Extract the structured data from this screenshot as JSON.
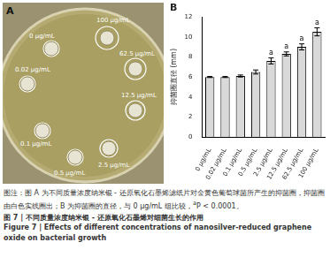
{
  "panel_labels": [
    "A",
    "B"
  ],
  "panel_a": {
    "plate_labels": [
      "0 μg/mL",
      "100 μg/mL",
      "62.5 μg/mL",
      "0.02 μg/mL",
      "12.5 μg/mL",
      "0.1 μg/mL",
      "2.5 μg/mL",
      "0.5 μg/mL"
    ]
  },
  "chart_data": {
    "type": "bar",
    "categories": [
      "0 μg/mL",
      "0.02 μg/mL",
      "0.1 μg/mL",
      "0.5 μg/mL",
      "2.5 μg/mL",
      "12.5 μg/mL",
      "62.5 μg/mL",
      "100 μg/mL"
    ],
    "values": [
      6.0,
      6.0,
      6.1,
      6.5,
      7.6,
      8.3,
      9.0,
      10.5
    ],
    "errors": [
      0.05,
      0.05,
      0.1,
      0.2,
      0.3,
      0.2,
      0.3,
      0.4
    ],
    "significance": [
      null,
      null,
      null,
      null,
      "a",
      "a",
      "a",
      "a"
    ],
    "y_label": "抑菌圈直径 (mm)",
    "ylim": [
      0,
      12
    ],
    "yticks": [
      0,
      2,
      4,
      6,
      8,
      10,
      12
    ],
    "color": "#d9d9d9",
    "grid": false
  },
  "caption": {
    "text": "图注：图 A 为不同质量浓度纳米银 - 还原氧化石墨烯滤纸片对金黄色葡萄球菌所产生的抑菌圈，抑菌圈由白色实线圈出；B 为抑菌圈的直径，与 0 μg/mL 组比较，",
    "superscript": "a",
    "after": "P < 0.0001。"
  },
  "figure_title_zh": "图 7 | 不同质量浓度纳米银 - 还原氧化石墨烯对细菌生长的作用",
  "figure_title_en": "Figure 7 | Effects of different concentrations of nanosilver-reduced graphene oxide on bacterial growth"
}
